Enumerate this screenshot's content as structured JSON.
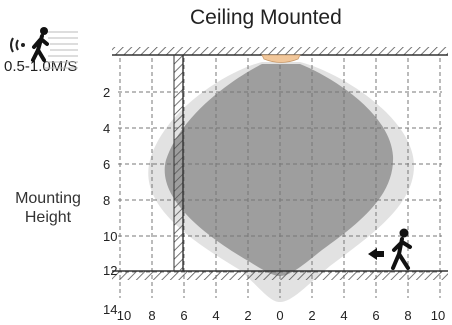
{
  "title": "Ceiling Mounted",
  "speed_label": "0.5-1.0M/S",
  "mounting_height_lines": [
    "Mounting",
    "Height"
  ],
  "y_ticks": [
    "2",
    "4",
    "6",
    "8",
    "10",
    "12",
    "14"
  ],
  "x_ticks": [
    "10",
    "8",
    "6",
    "4",
    "2",
    "0",
    "2",
    "4",
    "6",
    "8",
    "10"
  ],
  "icons": {
    "top_left": "walking-person-with-motion-waves-icon",
    "right": "walking-person-with-arrow-icon"
  },
  "colors": {
    "outer_zone": "#e2e2e2",
    "inner_zone": "#9e9e9e",
    "sensor": "#f2c79a",
    "hatch": "#555555"
  }
}
